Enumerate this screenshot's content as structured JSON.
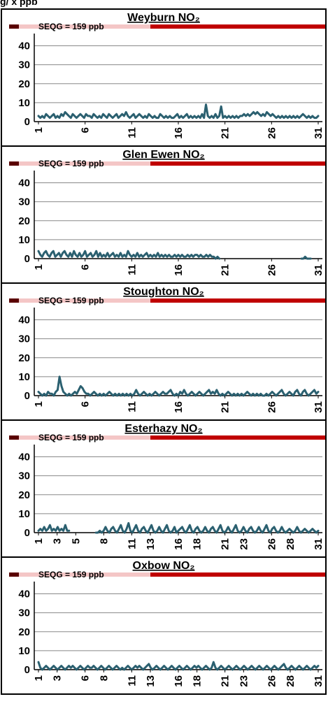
{
  "header_fragment": "g/  x  ppb",
  "seqg_label": "SEQG = 159 ppb",
  "colors": {
    "line": "#2b6070",
    "seqg_light": "#f4c6c6",
    "seqg_dark": "#c00000",
    "grid": "#888888"
  },
  "chart_data": [
    {
      "type": "line",
      "title": "Weyburn NO₂",
      "ylim": [
        0,
        45
      ],
      "yticks": [
        0,
        10,
        20,
        30,
        40
      ],
      "xlim": [
        1,
        31
      ],
      "xticks": [
        "1",
        "6",
        "11",
        "16",
        "21",
        "26",
        "31"
      ],
      "grid": true,
      "series": [
        {
          "values": [
            3,
            2,
            3,
            2,
            4,
            3,
            2,
            3,
            4,
            2,
            3,
            2,
            4,
            3,
            5,
            4,
            3,
            2,
            4,
            3,
            2,
            3,
            4,
            3,
            2,
            4,
            3,
            3,
            2,
            4,
            3,
            2,
            3,
            2,
            4,
            3,
            2,
            4,
            3,
            2,
            3,
            4,
            2,
            3,
            4,
            3,
            5,
            3,
            2,
            3,
            4,
            2,
            3,
            4,
            3,
            2,
            3,
            2,
            4,
            3,
            2,
            3,
            2,
            2,
            4,
            3,
            2,
            3,
            2,
            3,
            2,
            2,
            3,
            4,
            2,
            3,
            2,
            3,
            4,
            2,
            3,
            2,
            3,
            2,
            3,
            2,
            4,
            2,
            9,
            3,
            2,
            3,
            2,
            4,
            2,
            3,
            8,
            2,
            3,
            2,
            3,
            2,
            3,
            2,
            3,
            2,
            3,
            3,
            4,
            3,
            4,
            3,
            4,
            5,
            4,
            5,
            4,
            3,
            4,
            3,
            5,
            4,
            3,
            4,
            3,
            2,
            3,
            2,
            3,
            2,
            3,
            2,
            3,
            2,
            3,
            2,
            3,
            2,
            3,
            4,
            3,
            2,
            3,
            2,
            3,
            2,
            2,
            3
          ]
        }
      ]
    },
    {
      "type": "line",
      "title": "Glen Ewen NO₂",
      "ylim": [
        0,
        45
      ],
      "yticks": [
        0,
        10,
        20,
        30,
        40
      ],
      "xlim": [
        1,
        31
      ],
      "xticks": [
        "1",
        "6",
        "11",
        "16",
        "21",
        "26",
        "31"
      ],
      "grid": true,
      "series": [
        {
          "values": [
            4,
            2,
            1,
            3,
            4,
            2,
            1,
            3,
            4,
            1,
            2,
            3,
            1,
            3,
            4,
            2,
            1,
            3,
            1,
            4,
            2,
            1,
            3,
            1,
            2,
            4,
            1,
            2,
            3,
            1,
            2,
            4,
            1,
            3,
            1,
            2,
            1,
            3,
            1,
            2,
            3,
            1,
            2,
            1,
            3,
            1,
            2,
            1,
            4,
            2,
            1,
            2,
            1,
            3,
            1,
            2,
            1,
            2,
            3,
            1,
            2,
            1,
            2,
            1,
            3,
            1,
            2,
            1,
            2,
            1,
            2,
            1,
            1,
            2,
            1,
            2,
            1,
            2,
            1,
            1,
            2,
            1,
            2,
            1,
            2,
            2,
            1,
            2,
            1,
            1,
            2,
            1,
            2,
            1,
            1,
            0,
            1,
            0,
            null,
            null,
            null,
            null,
            null,
            null,
            null,
            null,
            null,
            null,
            null,
            null,
            null,
            null,
            null,
            null,
            null,
            null,
            null,
            null,
            null,
            null,
            null,
            null,
            null,
            null,
            null,
            null,
            null,
            null,
            null,
            null,
            null,
            null,
            null,
            null,
            null,
            null,
            null,
            null,
            null,
            null,
            null,
            0,
            0,
            1,
            0,
            0,
            0,
            null,
            null,
            null,
            null
          ]
        }
      ]
    },
    {
      "type": "line",
      "title": "Stoughton NO₂",
      "ylim": [
        0,
        45
      ],
      "yticks": [
        0,
        10,
        20,
        30,
        40
      ],
      "xlim": [
        1,
        31
      ],
      "xticks": [
        "1",
        "6",
        "11",
        "16",
        "21",
        "26",
        "31"
      ],
      "grid": true,
      "series": [
        {
          "values": [
            2,
            1,
            0,
            1,
            0,
            2,
            1,
            1,
            0,
            2,
            3,
            10,
            5,
            2,
            1,
            0,
            1,
            0,
            1,
            2,
            1,
            3,
            5,
            4,
            2,
            1,
            1,
            0,
            1,
            2,
            1,
            0,
            1,
            0,
            1,
            0,
            1,
            2,
            1,
            0,
            1,
            0,
            1,
            0,
            1,
            0,
            1,
            0,
            1,
            0,
            1,
            3,
            1,
            0,
            1,
            2,
            1,
            0,
            1,
            0,
            1,
            2,
            1,
            0,
            1,
            2,
            1,
            1,
            2,
            3,
            1,
            0,
            1,
            0,
            2,
            1,
            3,
            1,
            0,
            1,
            2,
            1,
            0,
            1,
            2,
            1,
            0,
            1,
            2,
            3,
            1,
            2,
            1,
            3,
            1,
            0,
            1,
            0,
            1,
            2,
            1,
            0,
            1,
            0,
            1,
            0,
            1,
            0,
            1,
            2,
            1,
            0,
            1,
            0,
            1,
            0,
            1,
            0,
            0,
            1,
            0,
            1,
            2,
            1,
            0,
            1,
            2,
            3,
            1,
            0,
            1,
            2,
            1,
            0,
            2,
            3,
            1,
            0,
            2,
            3,
            1,
            0,
            1,
            2,
            3,
            1,
            2
          ]
        }
      ]
    },
    {
      "type": "line",
      "title": "Esterhazy NO₂",
      "ylim": [
        0,
        45
      ],
      "yticks": [
        0,
        10,
        20,
        30,
        40
      ],
      "xlim": [
        1,
        31
      ],
      "xticks": [
        "1",
        "3",
        "5",
        "8",
        "11",
        "13",
        "16",
        "18",
        "21",
        "23",
        "26",
        "28",
        "31"
      ],
      "grid": true,
      "series": [
        {
          "values": [
            1,
            2,
            1,
            3,
            1,
            2,
            4,
            1,
            2,
            1,
            3,
            1,
            2,
            1,
            4,
            1,
            1,
            null,
            null,
            null,
            null,
            null,
            null,
            null,
            null,
            null,
            null,
            null,
            null,
            null,
            0,
            0,
            1,
            0,
            1,
            3,
            1,
            0,
            2,
            3,
            1,
            0,
            2,
            4,
            1,
            0,
            2,
            5,
            1,
            0,
            2,
            4,
            1,
            0,
            2,
            3,
            1,
            0,
            2,
            4,
            1,
            0,
            1,
            3,
            1,
            0,
            2,
            4,
            1,
            0,
            1,
            3,
            0,
            1,
            2,
            3,
            1,
            0,
            2,
            4,
            1,
            0,
            2,
            3,
            1,
            0,
            1,
            3,
            1,
            0,
            2,
            3,
            1,
            0,
            2,
            4,
            1,
            0,
            1,
            3,
            1,
            0,
            2,
            4,
            1,
            0,
            1,
            3,
            1,
            0,
            2,
            3,
            1,
            0,
            1,
            3,
            1,
            0,
            2,
            4,
            1,
            0,
            2,
            3,
            1,
            0,
            1,
            3,
            1,
            0,
            1,
            2,
            1,
            0,
            1,
            3,
            1,
            0,
            1,
            2,
            1,
            0,
            1,
            2,
            1,
            0,
            1
          ]
        }
      ]
    },
    {
      "type": "line",
      "title": "Oxbow NO₂",
      "ylim": [
        0,
        45
      ],
      "yticks": [
        0,
        10,
        20,
        30,
        40
      ],
      "xlim": [
        1,
        31
      ],
      "xticks": [
        "1",
        "3",
        "6",
        "8",
        "11",
        "13",
        "16",
        "18",
        "21",
        "23",
        "26",
        "28",
        "31"
      ],
      "grid": true,
      "series": [
        {
          "values": [
            4,
            1,
            0,
            1,
            2,
            1,
            0,
            1,
            2,
            1,
            0,
            1,
            2,
            1,
            0,
            1,
            2,
            1,
            2,
            1,
            0,
            1,
            2,
            1,
            0,
            1,
            2,
            1,
            1,
            2,
            1,
            0,
            1,
            2,
            1,
            0,
            1,
            2,
            1,
            0,
            1,
            2,
            1,
            0,
            1,
            0,
            1,
            2,
            1,
            0,
            1,
            2,
            1,
            2,
            1,
            0,
            1,
            2,
            3,
            1,
            0,
            1,
            2,
            1,
            0,
            1,
            2,
            1,
            0,
            1,
            2,
            1,
            0,
            1,
            2,
            1,
            0,
            1,
            2,
            1,
            0,
            1,
            2,
            1,
            2,
            1,
            0,
            1,
            2,
            1,
            0,
            1,
            4,
            1,
            0,
            1,
            2,
            1,
            0,
            1,
            2,
            1,
            0,
            1,
            2,
            1,
            0,
            1,
            2,
            1,
            0,
            1,
            2,
            1,
            0,
            1,
            2,
            1,
            0,
            1,
            2,
            1,
            0,
            1,
            2,
            1,
            0,
            1,
            2,
            3,
            1,
            0,
            1,
            2,
            1,
            0,
            1,
            2,
            1,
            0,
            1,
            2,
            1,
            0,
            1,
            2,
            1,
            2
          ]
        }
      ]
    }
  ]
}
